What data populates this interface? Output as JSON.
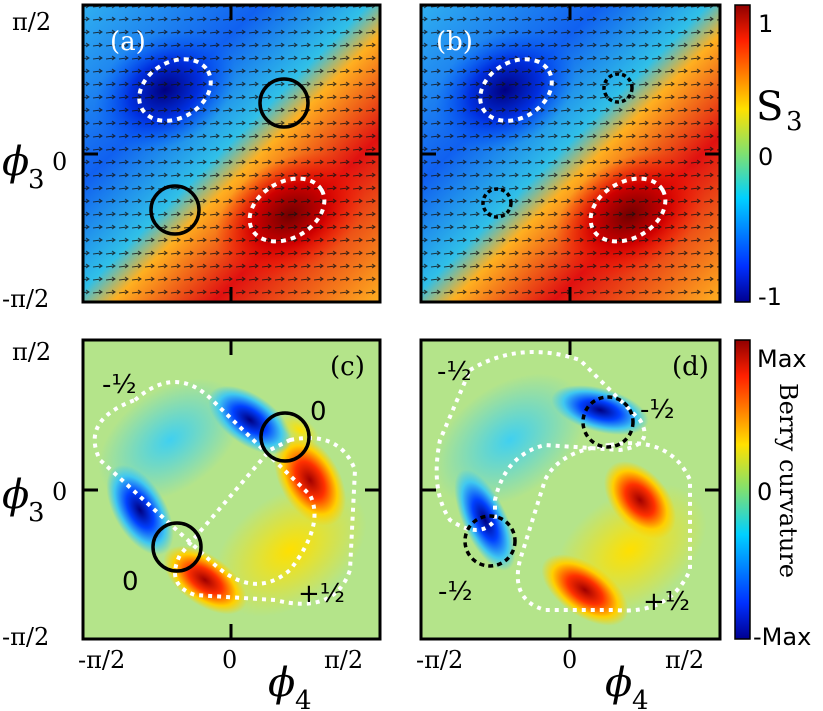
{
  "figure": {
    "y_ticks": [
      "π/2",
      "0",
      "-π/2"
    ],
    "x_ticks": [
      "-π/2",
      "0",
      "π/2"
    ],
    "y_axis_symbol": "ϕ",
    "y_axis_subscript": "3",
    "x_axis_symbol": "ϕ",
    "x_axis_subscript": "4",
    "panels": {
      "a": {
        "label": "(a)"
      },
      "b": {
        "label": "(b)"
      },
      "c": {
        "label": "(c)",
        "charges": [
          "-½",
          "0",
          "0",
          "+½"
        ]
      },
      "d": {
        "label": "(d)",
        "charges": [
          "-½",
          "-½",
          "-½",
          "+½"
        ]
      }
    },
    "colorbar_top": {
      "title_main": "S",
      "title_sub": "3",
      "ticks": [
        "1",
        "0",
        "-1"
      ]
    },
    "colorbar_bottom": {
      "title": "Berry curvature",
      "ticks": [
        "Max",
        "0",
        "-Max"
      ]
    },
    "colors": {
      "max": "#b00000",
      "high": "#ff3000",
      "mid_high": "#ffd000",
      "zero": "#aee07a",
      "mid_low": "#40d0e0",
      "low": "#0050ff",
      "min": "#000090",
      "background_bottom": "#b4e48a"
    }
  }
}
